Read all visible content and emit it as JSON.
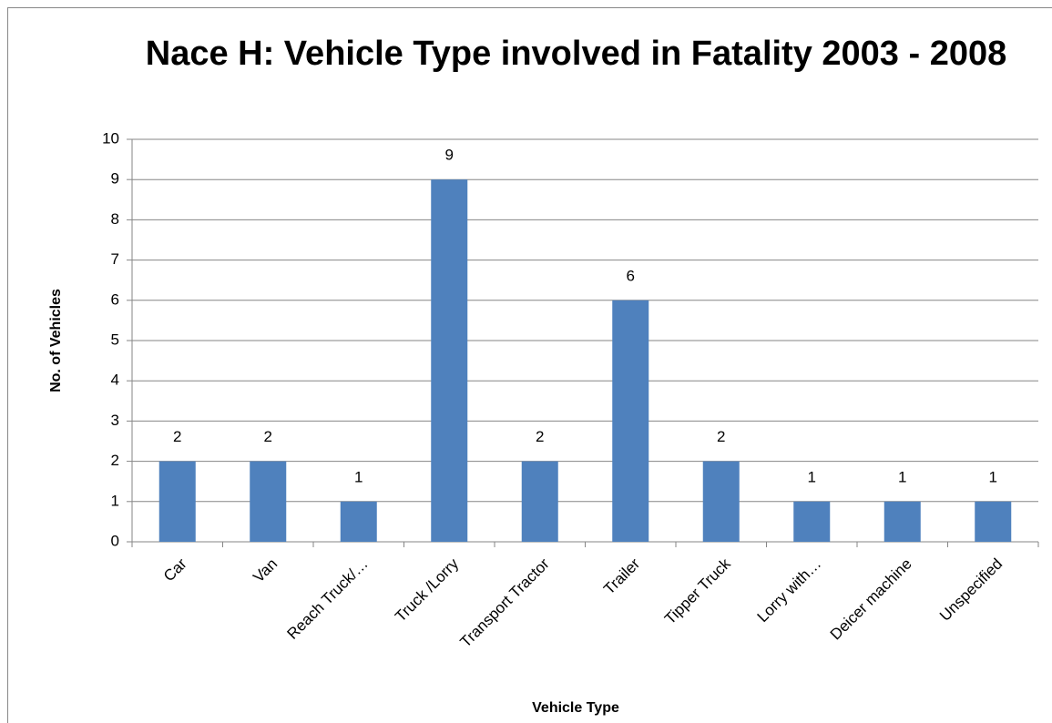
{
  "chart_data": {
    "type": "bar",
    "title": "Nace H: Vehicle Type involved in Fatality 2003 - 2008",
    "x_label": "Vehicle Type",
    "y_label": "No. of Vehicles",
    "categories": [
      "Car",
      "Van",
      "Reach Truck/…",
      "Truck /Lorry",
      "Transport Tractor",
      "Trailer",
      "Tipper Truck",
      "Lorry with…",
      "Deicer machine",
      "Unspecified"
    ],
    "values": [
      2,
      2,
      1,
      9,
      2,
      6,
      2,
      1,
      1,
      1
    ],
    "color": "#4f81bd",
    "ylim": [
      0,
      10
    ],
    "yticks": [
      0,
      1,
      2,
      3,
      4,
      5,
      6,
      7,
      8,
      9,
      10
    ],
    "grid": true
  }
}
